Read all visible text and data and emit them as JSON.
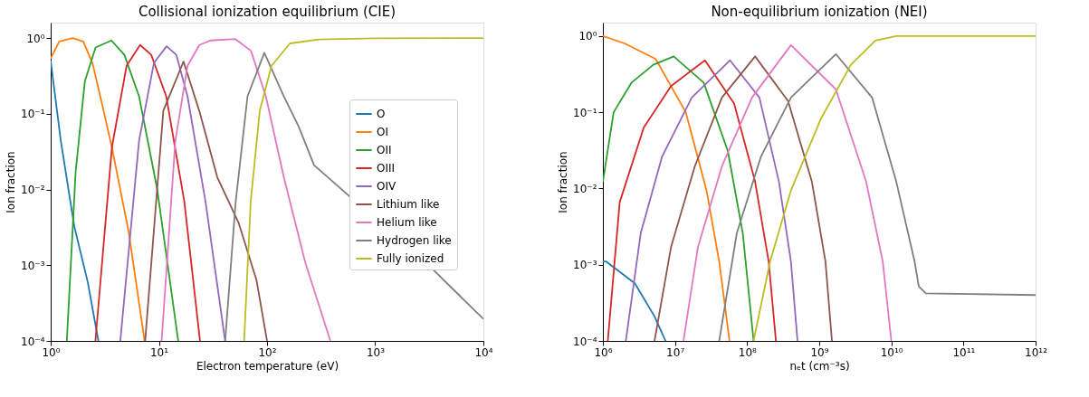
{
  "chart_data": [
    {
      "type": "line",
      "title": "Collisional ionization equilibrium (CIE)",
      "xlabel": "Electron temperature (eV)",
      "ylabel": "Ion fraction",
      "log": "xy",
      "grid": false,
      "legend": "right",
      "xlim": [
        1,
        10000
      ],
      "ylim": [
        0.0001,
        1.6
      ],
      "xticks": [
        {
          "value": 1,
          "label": "10⁰"
        },
        {
          "value": 10,
          "label": "10¹"
        },
        {
          "value": 100,
          "label": "10²"
        },
        {
          "value": 1000,
          "label": "10³"
        },
        {
          "value": 10000,
          "label": "10⁴"
        }
      ],
      "yticks": [
        {
          "value": 0.0001,
          "label": "10⁻⁴"
        },
        {
          "value": 0.001,
          "label": "10⁻³"
        },
        {
          "value": 0.01,
          "label": "10⁻²"
        },
        {
          "value": 0.1,
          "label": "10⁻¹"
        },
        {
          "value": 1,
          "label": "10⁰"
        }
      ],
      "series": [
        {
          "name": "O",
          "color": "#1f77b4",
          "x": [
            1,
            1.24,
            1.65,
            2.2,
            2.76
          ],
          "values": [
            0.5,
            0.044,
            0.0033,
            0.0006,
            0.0001
          ]
        },
        {
          "name": "OI",
          "color": "#ff7f0e",
          "x": [
            1,
            1.2,
            1.6,
            2.0,
            2.43,
            3.0,
            3.68,
            5.25,
            7.38
          ],
          "values": [
            0.54,
            0.9,
            1.0,
            0.9,
            0.47,
            0.13,
            0.036,
            0.0028,
            0.0001
          ]
        },
        {
          "name": "OII",
          "color": "#2ca02c",
          "x": [
            1.41,
            1.7,
            2.07,
            2.6,
            3.64,
            4.8,
            6.56,
            9.66,
            15.1
          ],
          "values": [
            0.0001,
            0.017,
            0.27,
            0.75,
            0.93,
            0.6,
            0.17,
            0.01,
            0.0001
          ]
        },
        {
          "name": "OIII",
          "color": "#d62728",
          "x": [
            2.59,
            3.68,
            5.03,
            6.7,
            8.5,
            11.7,
            17.2,
            24
          ],
          "values": [
            0.0001,
            0.036,
            0.43,
            0.81,
            0.6,
            0.17,
            0.0069,
            0.0001
          ]
        },
        {
          "name": "OIV",
          "color": "#9467bd",
          "x": [
            4.4,
            6.56,
            9.0,
            11.8,
            14.5,
            18.4,
            27,
            41
          ],
          "values": [
            0.0001,
            0.044,
            0.47,
            0.78,
            0.6,
            0.17,
            0.0069,
            0.0001
          ]
        },
        {
          "name": "Lithium like",
          "color": "#8c564b",
          "x": [
            7.47,
            11,
            16.9,
            23.6,
            34.7,
            54.7,
            80,
            100
          ],
          "values": [
            0.0001,
            0.11,
            0.49,
            0.11,
            0.0145,
            0.0036,
            0.00063,
            0.0001
          ]
        },
        {
          "name": "Helium like",
          "color": "#e377c2",
          "x": [
            10.6,
            14.2,
            18.4,
            23.7,
            30,
            51,
            71,
            97.5,
            143,
            225,
            385
          ],
          "values": [
            0.0001,
            0.044,
            0.43,
            0.81,
            0.93,
            0.97,
            0.68,
            0.17,
            0.0145,
            0.0011,
            0.0001
          ]
        },
        {
          "name": "Hydrogen like",
          "color": "#7f7f7f",
          "x": [
            41,
            51.3,
            66,
            94.4,
            143,
            196,
            272,
            3530,
            10000
          ],
          "values": [
            0.0001,
            0.0069,
            0.17,
            0.64,
            0.17,
            0.068,
            0.021,
            0.00084,
            0.000195
          ]
        },
        {
          "name": "Fully ionized",
          "color": "#bcbd22",
          "x": [
            61.4,
            70.6,
            85.7,
            110,
            163,
            300,
            1000,
            10000
          ],
          "values": [
            0.0001,
            0.0069,
            0.11,
            0.43,
            0.85,
            0.96,
            0.99,
            1.0
          ]
        }
      ]
    },
    {
      "type": "line",
      "title": "Non-equilibrium ionization (NEI)",
      "xlabel": "nₑt (cm⁻³s)",
      "ylabel": "Ion fraction",
      "log": "xy",
      "grid": false,
      "legend": "right",
      "xlim": [
        1000000,
        1000000000000
      ],
      "ylim": [
        0.0001,
        1.5
      ],
      "xticks": [
        {
          "value": 1000000,
          "label": "10⁶"
        },
        {
          "value": 10000000,
          "label": "10⁷"
        },
        {
          "value": 100000000,
          "label": "10⁸"
        },
        {
          "value": 1000000000,
          "label": "10⁹"
        },
        {
          "value": 10000000000,
          "label": "10¹⁰"
        },
        {
          "value": 100000000000,
          "label": "10¹¹"
        },
        {
          "value": 1000000000000,
          "label": "10¹²"
        }
      ],
      "yticks": [
        {
          "value": 0.0001,
          "label": "10⁻⁴"
        },
        {
          "value": 0.001,
          "label": "10⁻³"
        },
        {
          "value": 0.01,
          "label": "10⁻²"
        },
        {
          "value": 0.1,
          "label": "10⁻¹"
        },
        {
          "value": 1,
          "label": "10⁰"
        }
      ],
      "series": [
        {
          "name": "O",
          "color": "#1f77b4",
          "x": [
            1000000,
            1110000,
            2770000,
            5200000,
            7400000
          ],
          "values": [
            0.0011,
            0.0011,
            0.00057,
            0.00021,
            0.0001
          ]
        },
        {
          "name": "OI",
          "color": "#ff7f0e",
          "x": [
            1000000,
            2000000,
            5400000,
            14100000,
            27400000,
            41000000,
            57000000
          ],
          "values": [
            1.0,
            0.8,
            0.5,
            0.1,
            0.0094,
            0.0011,
            0.0001
          ]
        },
        {
          "name": "OII",
          "color": "#2ca02c",
          "x": [
            1000000,
            1410000,
            2500000,
            5000000,
            9600000,
            25000000,
            54000000,
            87000000,
            123000000
          ],
          "values": [
            0.0123,
            0.1,
            0.245,
            0.42,
            0.54,
            0.245,
            0.031,
            0.0026,
            0.0001
          ]
        },
        {
          "name": "OIII",
          "color": "#d62728",
          "x": [
            1170000,
            1710000,
            3690000,
            8800000,
            26000000,
            66000000,
            129000000,
            199000000,
            251000000
          ],
          "values": [
            0.0001,
            0.0066,
            0.063,
            0.22,
            0.48,
            0.13,
            0.0123,
            0.0011,
            0.0001
          ]
        },
        {
          "name": "OIV",
          "color": "#9467bd",
          "x": [
            2080000,
            3350000,
            6600000,
            17100000,
            58000000,
            148000000,
            276000000,
            405000000,
            500000000
          ],
          "values": [
            0.0001,
            0.0026,
            0.026,
            0.156,
            0.48,
            0.156,
            0.0123,
            0.0011,
            0.0001
          ]
        },
        {
          "name": "Lithium like",
          "color": "#8c564b",
          "x": [
            5200000,
            8800000,
            18800000,
            44700000,
            129000000,
            370000000,
            790000000,
            1220000000,
            1500000000
          ],
          "values": [
            0.0001,
            0.0017,
            0.0195,
            0.156,
            0.54,
            0.14,
            0.0123,
            0.0011,
            0.0001
          ]
        },
        {
          "name": "Helium like",
          "color": "#e377c2",
          "x": [
            13100000,
            20800000,
            44700000,
            117000000,
            405000000,
            1700000000,
            4470000000,
            7600000000,
            10000000000
          ],
          "values": [
            0.0001,
            0.0017,
            0.0195,
            0.156,
            0.76,
            0.2,
            0.0123,
            0.0011,
            0.0001
          ]
        },
        {
          "name": "Hydrogen like",
          "color": "#7f7f7f",
          "x": [
            41000000,
            72000000,
            155000000,
            405000000,
            1700000000,
            5400000000,
            11700000000,
            21000000000,
            24000000000,
            30000000000,
            1000000000000
          ],
          "values": [
            0.0001,
            0.0026,
            0.026,
            0.156,
            0.58,
            0.156,
            0.0123,
            0.0011,
            0.00052,
            0.00042,
            0.0004
          ]
        },
        {
          "name": "Fully ionized",
          "color": "#bcbd22",
          "x": [
            123000000,
            208000000,
            405000000,
            1060000000,
            2750000000,
            6000000000,
            11700000000,
            1000000000000
          ],
          "values": [
            0.0001,
            0.0011,
            0.0094,
            0.083,
            0.42,
            0.87,
            1.0,
            1.0
          ]
        }
      ]
    }
  ]
}
